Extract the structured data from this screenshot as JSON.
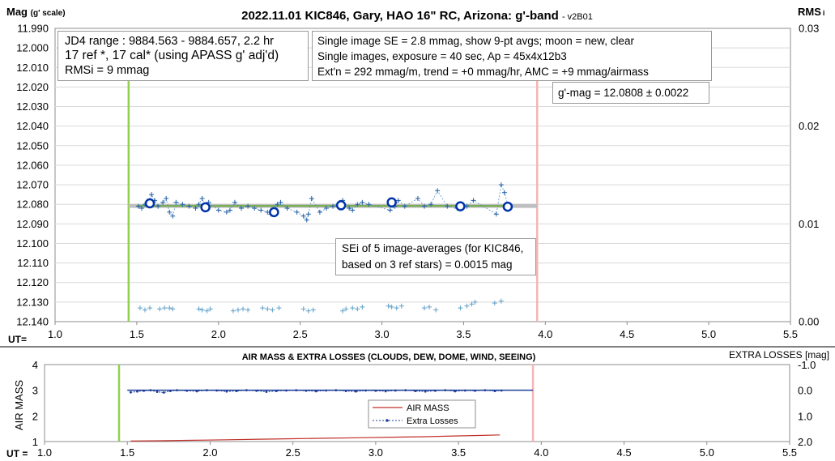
{
  "chart_data": [
    {
      "type": "scatter",
      "title": "2022.11.01 KIC846, Gary, HAO 16\" RC, Arizona: g'-band",
      "version": "- v2B01",
      "ylabel_main": "Mag",
      "ylabel_suffix": "(g' scale)",
      "y2label_main": "RMS",
      "y2label_suffix": "i",
      "xlabel": "UT=",
      "xlim": [
        1.0,
        5.5
      ],
      "ylim": [
        12.14,
        11.99
      ],
      "y2lim": [
        0.0,
        0.03
      ],
      "x_ticks": [
        "1.0",
        "1.5",
        "2.0",
        "2.5",
        "3.0",
        "3.5",
        "4.0",
        "4.5",
        "5.0",
        "5.5"
      ],
      "y_ticks": [
        "11.990",
        "12.000",
        "12.010",
        "12.020",
        "12.030",
        "12.040",
        "12.050",
        "12.060",
        "12.070",
        "12.080",
        "12.090",
        "12.100",
        "12.110",
        "12.120",
        "12.130",
        "12.140"
      ],
      "y2_ticks": [
        "0.03",
        "0.02",
        "0.01",
        "0.00"
      ],
      "vlines": [
        {
          "x": 1.45,
          "color": "#92d050"
        },
        {
          "x": 3.95,
          "color": "#f4b6b6"
        }
      ],
      "fit_line": {
        "x": [
          1.45,
          3.95
        ],
        "y": 12.0808,
        "color": "#bfbfbf"
      },
      "green_line": {
        "x": [
          1.5,
          3.78
        ],
        "y": 12.0808,
        "color": "#70ad47"
      },
      "annotations": {
        "box1": [
          "JD4 range : 9884.563 - 9884.657,  2.2 hr",
          "17 ref *, 17 cal* (using APASS g' adj'd)",
          "RMSi = 9 mmag"
        ],
        "box2": [
          "Single image SE = 2.8 mmag, show  9-pt avgs; moon = new, clear",
          "Single images, exposure = 40 sec, Ap = 45x4x12b3",
          "Ext'n = 292 mmag/m, trend = +0 mmag/hr, AMC = +9 mmag/airmass"
        ],
        "box3": "g'-mag = 12.0808 ± 0.0022",
        "box4": [
          "SEi of 5 image-averages (for KIC846,",
          "based on 3 ref stars) = 0.0015 mag"
        ]
      },
      "series": [
        {
          "marker": "plus",
          "color": "#1f5fa6",
          "x": [
            1.51,
            1.53,
            1.55,
            1.57,
            1.59,
            1.61,
            1.63,
            1.66,
            1.68,
            1.7,
            1.72,
            1.74,
            1.78,
            1.82,
            1.86,
            1.88,
            1.9,
            1.92,
            1.94,
            2.0,
            2.05,
            2.07,
            2.1,
            2.14,
            2.18,
            2.22,
            2.26,
            2.3,
            2.32,
            2.34,
            2.36,
            2.38,
            2.42,
            2.48,
            2.52,
            2.54,
            2.55,
            2.57,
            2.62,
            2.66,
            2.7,
            2.74,
            2.76,
            2.8,
            2.82,
            2.85,
            2.88,
            2.92,
            3.05,
            3.08,
            3.1,
            3.14,
            3.22,
            3.26,
            3.3,
            3.34,
            3.4,
            3.46,
            3.48,
            3.52,
            3.56,
            3.7,
            3.73,
            3.75,
            3.77
          ],
          "y": [
            12.081,
            12.082,
            12.08,
            12.079,
            12.075,
            12.078,
            12.081,
            12.079,
            12.077,
            12.084,
            12.086,
            12.079,
            12.08,
            12.081,
            12.082,
            12.08,
            12.077,
            12.081,
            12.079,
            12.083,
            12.084,
            12.083,
            12.079,
            12.082,
            12.081,
            12.082,
            12.083,
            12.084,
            12.085,
            12.083,
            12.08,
            12.079,
            12.082,
            12.084,
            12.086,
            12.088,
            12.085,
            12.077,
            12.084,
            12.082,
            12.081,
            12.079,
            12.078,
            12.082,
            12.083,
            12.08,
            12.079,
            12.08,
            12.083,
            12.081,
            12.078,
            12.081,
            12.077,
            12.081,
            12.08,
            12.073,
            12.081,
            12.082,
            12.08,
            12.081,
            12.078,
            12.085,
            12.07,
            12.074,
            12.08
          ]
        },
        {
          "marker": "circle",
          "color": "#0033aa",
          "x": [
            1.58,
            1.92,
            2.34,
            2.75,
            3.06,
            3.48,
            3.77
          ],
          "y": [
            12.0795,
            12.0815,
            12.084,
            12.0805,
            12.079,
            12.081,
            12.0812
          ]
        },
        {
          "marker": "plus",
          "axis": "y2",
          "color": "#5fa0c8",
          "x": [
            1.52,
            1.55,
            1.58,
            1.64,
            1.67,
            1.7,
            1.72,
            1.88,
            1.9,
            1.93,
            1.95,
            2.09,
            2.12,
            2.15,
            2.18,
            2.27,
            2.3,
            2.33,
            2.37,
            2.52,
            2.55,
            2.58,
            2.76,
            2.78,
            2.82,
            2.85,
            2.88,
            3.04,
            3.06,
            3.09,
            3.12,
            3.26,
            3.29,
            3.33,
            3.48,
            3.52,
            3.55,
            3.57,
            3.69,
            3.73
          ],
          "y": [
            0.0014,
            0.0012,
            0.0014,
            0.0013,
            0.0014,
            0.0014,
            0.0013,
            0.0013,
            0.0012,
            0.0011,
            0.0013,
            0.0011,
            0.0012,
            0.0013,
            0.0012,
            0.0014,
            0.0013,
            0.0012,
            0.0014,
            0.0013,
            0.0011,
            0.0012,
            0.0011,
            0.0013,
            0.0014,
            0.0013,
            0.0015,
            0.0016,
            0.0015,
            0.0014,
            0.0016,
            0.0014,
            0.0015,
            0.0012,
            0.0014,
            0.0016,
            0.0018,
            0.002,
            0.0019,
            0.0021
          ]
        }
      ]
    },
    {
      "type": "line",
      "title": "AIR MASS & EXTRA LOSSES (CLOUDS, DEW, DOME, WIND, SEEING)",
      "ylabel": "AIR MASS",
      "y2label": "EXTRA LOSSES [mag]",
      "xlabel": "UT =",
      "xlim": [
        1.0,
        5.5
      ],
      "ylim": [
        1,
        4
      ],
      "y2lim": [
        2.0,
        -1.0
      ],
      "x_ticks": [
        "1.0",
        "1.5",
        "2.0",
        "2.5",
        "3.0",
        "3.5",
        "4.0",
        "4.5",
        "5.0",
        "5.5"
      ],
      "y_ticks": [
        "4",
        "3",
        "2",
        "1"
      ],
      "y2_ticks": [
        "-1.0",
        "0.0",
        "1.0",
        "2.0"
      ],
      "vlines": [
        {
          "x": 1.45,
          "color": "#92d050"
        },
        {
          "x": 3.95,
          "color": "#f4b6b6"
        }
      ],
      "legend": [
        "AIR MASS",
        "Extra Losses"
      ],
      "series": [
        {
          "name": "AIR MASS",
          "color": "#c0302a",
          "x": [
            1.52,
            1.7,
            1.9,
            2.1,
            2.3,
            2.5,
            2.7,
            2.9,
            3.1,
            3.3,
            3.5,
            3.65,
            3.75
          ],
          "y": [
            1.02,
            1.03,
            1.05,
            1.07,
            1.09,
            1.11,
            1.13,
            1.15,
            1.17,
            1.19,
            1.22,
            1.24,
            1.26
          ]
        },
        {
          "name": "Extra Losses",
          "axis": "y2",
          "color": "#1f3f9a",
          "x": [
            1.52,
            1.56,
            1.6,
            1.64,
            1.68,
            1.72,
            1.76,
            1.8,
            1.86,
            1.92,
            1.98,
            2.04,
            2.1,
            2.16,
            2.22,
            2.28,
            2.34,
            2.4,
            2.46,
            2.52,
            2.58,
            2.64,
            2.7,
            2.76,
            2.82,
            2.88,
            2.94,
            3.0,
            3.06,
            3.12,
            3.18,
            3.24,
            3.3,
            3.36,
            3.42,
            3.48,
            3.54,
            3.6,
            3.66,
            3.72,
            3.76
          ],
          "y": [
            0.08,
            0.05,
            0.02,
            0.0,
            0.06,
            0.09,
            0.03,
            0.0,
            0.02,
            0.04,
            0.0,
            0.01,
            0.05,
            0.03,
            0.0,
            0.02,
            0.06,
            0.03,
            0.01,
            0.0,
            0.02,
            0.04,
            0.01,
            0.0,
            0.03,
            0.05,
            0.01,
            0.02,
            0.04,
            0.01,
            0.0,
            0.03,
            0.05,
            0.02,
            0.0,
            0.04,
            0.01,
            0.02,
            0.0,
            0.03,
            0.01
          ]
        }
      ]
    }
  ]
}
